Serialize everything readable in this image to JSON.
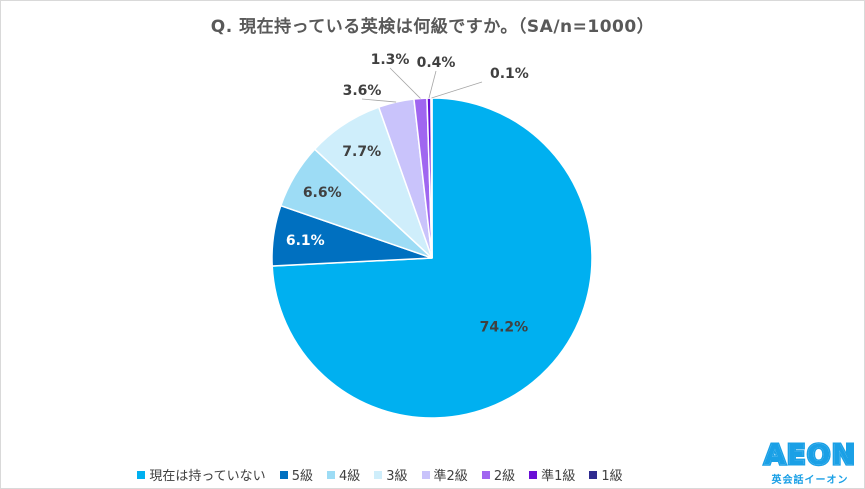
{
  "chart_data": {
    "type": "pie",
    "title": "Q. 現在持っている英検は何級ですか。（SA/n=1000）",
    "start": "12 o'clock, clockwise",
    "slices": [
      {
        "label": "現在は持っていない",
        "value": 74.2,
        "value_label": "74.2%",
        "color": "#00b0f0",
        "label_position": "inside"
      },
      {
        "label": "5級",
        "value": 6.1,
        "value_label": "6.1%",
        "color": "#0070c0",
        "label_position": "inside"
      },
      {
        "label": "4級",
        "value": 6.6,
        "value_label": "6.6%",
        "color": "#9ddcf5",
        "label_position": "inside"
      },
      {
        "label": "3級",
        "value": 7.7,
        "value_label": "7.7%",
        "color": "#cfeefb",
        "label_position": "inside"
      },
      {
        "label": "準2級",
        "value": 3.6,
        "value_label": "3.6%",
        "color": "#c9c3fb",
        "label_position": "outside"
      },
      {
        "label": "2級",
        "value": 1.3,
        "value_label": "1.3%",
        "color": "#a066f0",
        "label_position": "outside"
      },
      {
        "label": "準1級",
        "value": 0.4,
        "value_label": "0.4%",
        "color": "#6a0fd6",
        "label_position": "outside"
      },
      {
        "label": "1級",
        "value": 0.1,
        "value_label": "0.1%",
        "color": "#2f2b8f",
        "label_position": "outside"
      }
    ],
    "legend_position": "bottom"
  },
  "logo": {
    "word": "AEON",
    "sub": "英会話イーオン",
    "color": "#1aa0e6"
  }
}
